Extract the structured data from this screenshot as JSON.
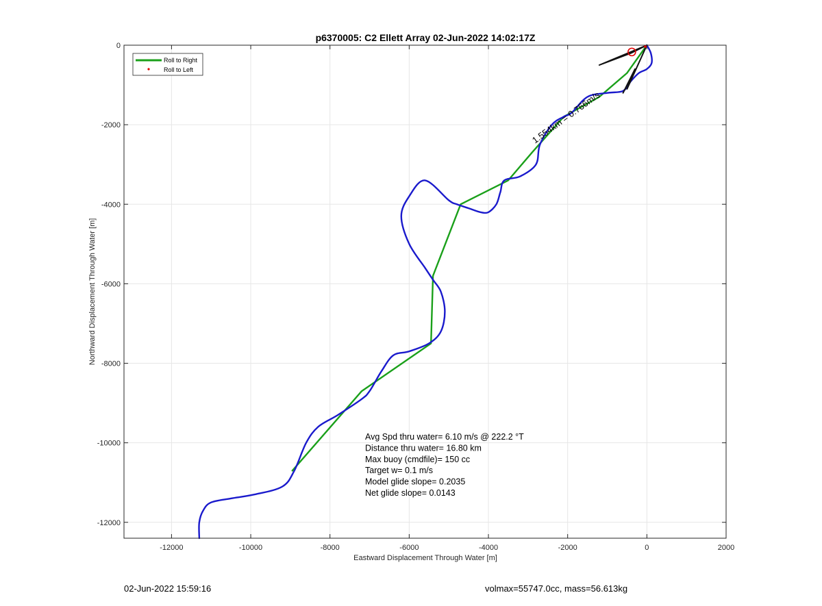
{
  "chart_data": {
    "type": "line",
    "title": "p6370005: C2 Ellett Array 02-Jun-2022 14:02:17Z",
    "xlabel": "Eastward Displacement Through Water [m]",
    "ylabel": "Northward Displacement Through Water [m]",
    "xlim": [
      -13200,
      2000
    ],
    "ylim": [
      -12400,
      0
    ],
    "x_ticks": [
      -12000,
      -10000,
      -8000,
      -6000,
      -4000,
      -2000,
      0,
      2000
    ],
    "y_ticks": [
      0,
      -2000,
      -4000,
      -6000,
      -8000,
      -10000,
      -12000
    ],
    "x_tick_labels": [
      "-12000",
      "-10000",
      "-8000",
      "-6000",
      "-4000",
      "-2000",
      "0",
      "2000"
    ],
    "y_tick_labels": [
      "0",
      "-2000",
      "-4000",
      "-6000",
      "-8000",
      "-10000",
      "-12000"
    ],
    "grid": true,
    "legend": {
      "placement": "top-left",
      "entries": [
        {
          "label": "Roll to Right",
          "color": "#1aa01a",
          "style": "line"
        },
        {
          "label": "Roll to Left",
          "color": "#e00000",
          "style": "dot"
        }
      ]
    },
    "series": [
      {
        "name": "Roll to Right",
        "color": "#1aa01a",
        "x": [
          0,
          -500,
          -1200,
          -2100,
          -2900,
          -3500,
          -4700,
          -5400,
          -5450,
          -7200,
          -8950
        ],
        "y": [
          0,
          -700,
          -1300,
          -1800,
          -2700,
          -3400,
          -4000,
          -5800,
          -7500,
          -8700,
          -10700
        ]
      },
      {
        "color": "#1a1acc",
        "x": [
          0,
          100,
          120,
          0,
          -200,
          -400,
          -600,
          -1000,
          -1500,
          -1900,
          -2100,
          -2400,
          -2700,
          -2800,
          -3200,
          -3600,
          -3700,
          -3800,
          -4000,
          -4200,
          -4500,
          -4800,
          -5000,
          -5600,
          -6000,
          -6200,
          -6000,
          -5600,
          -5400,
          -5200,
          -5100,
          -5200,
          -5500,
          -6000,
          -6400,
          -6700,
          -7000,
          -7200,
          -7800,
          -8300,
          -8600,
          -8900,
          -9200,
          -9900,
          -10500,
          -11000,
          -11200,
          -11300,
          -11300
        ],
        "y": [
          0,
          -200,
          -450,
          -600,
          -700,
          -900,
          -1150,
          -1200,
          -1300,
          -1700,
          -1800,
          -2000,
          -2500,
          -3000,
          -3300,
          -3400,
          -3700,
          -4000,
          -4200,
          -4200,
          -4100,
          -4000,
          -3900,
          -3400,
          -3800,
          -4300,
          -5000,
          -5600,
          -5900,
          -6200,
          -6700,
          -7200,
          -7500,
          -7700,
          -7800,
          -8200,
          -8700,
          -8900,
          -9300,
          -9600,
          -10000,
          -10700,
          -11100,
          -11300,
          -11400,
          -11500,
          -11700,
          -12000,
          -12400
        ]
      },
      {
        "color": "#111111",
        "x": [
          0,
          -1200,
          -400,
          0,
          -500,
          -300,
          -600
        ],
        "y": [
          0,
          -500,
          -200,
          0,
          -1100,
          -600,
          -1200
        ]
      }
    ],
    "markers": [
      {
        "label": "start circle",
        "color": "#e00000",
        "x": -380,
        "y": -170
      },
      {
        "label": "end dot",
        "color": "#e00000",
        "x": -40,
        "y": -30
      }
    ],
    "annotations": {
      "rotated_label": "1.554km = 0.766m/s",
      "stats_lines": [
        "Avg Spd thru water=  6.10 m/s @ 222.2 °T",
        "Distance thru water= 16.80 km",
        "Max buoy (cmdfile)= 150 cc",
        "Target w= 0.1 m/s",
        "Model glide slope= 0.2035",
        "Net glide slope= 0.0143"
      ]
    }
  },
  "footer": {
    "timestamp": "02-Jun-2022 15:59:16",
    "volume_mass": "volmax=55747.0cc, mass=56.613kg"
  }
}
